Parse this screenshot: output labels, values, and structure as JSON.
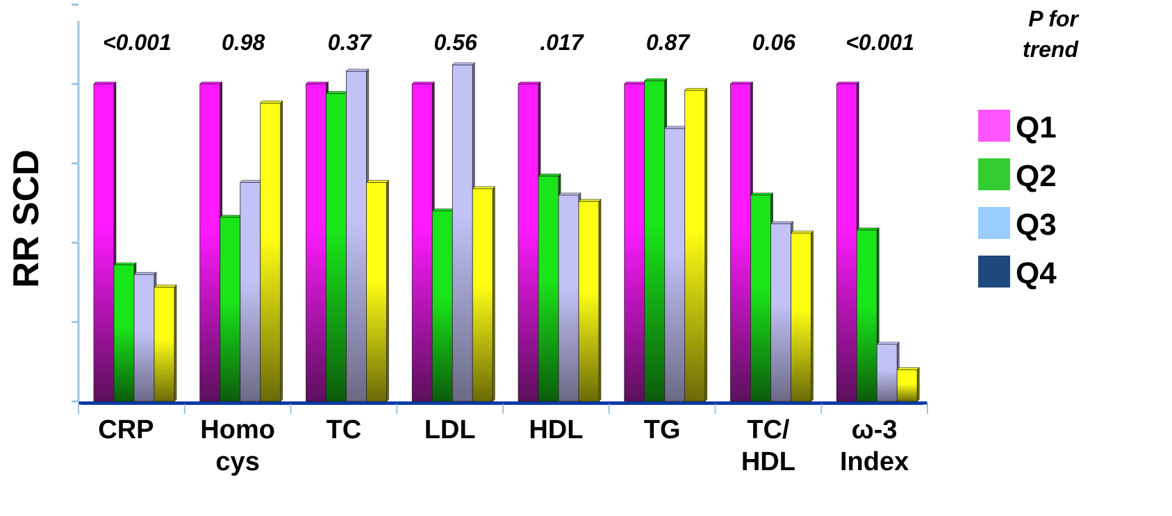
{
  "chart_data": {
    "type": "bar",
    "title": "",
    "ylabel": "RR SCD",
    "xlabel": "",
    "ylim": [
      0,
      1.25
    ],
    "ytick_values": [
      0,
      0.25,
      0.5,
      0.75,
      1.0,
      1.25
    ],
    "ytick_labels_shown": false,
    "grid": false,
    "legend_position": "right",
    "categories": [
      [
        "CRP"
      ],
      [
        "Homo",
        "cys"
      ],
      [
        "TC"
      ],
      [
        "LDL"
      ],
      [
        "HDL"
      ],
      [
        "TG"
      ],
      [
        "TC/",
        "HDL"
      ],
      [
        "ω-3",
        "Index"
      ]
    ],
    "series": [
      {
        "name": "Q1",
        "values": [
          1.0,
          1.0,
          1.0,
          1.0,
          1.0,
          1.0,
          1.0,
          1.0
        ]
      },
      {
        "name": "Q2",
        "values": [
          0.43,
          0.58,
          0.97,
          0.6,
          0.71,
          1.01,
          0.65,
          0.54
        ]
      },
      {
        "name": "Q3",
        "values": [
          0.4,
          0.69,
          1.04,
          1.06,
          0.65,
          0.86,
          0.56,
          0.18
        ]
      },
      {
        "name": "Q4",
        "values": [
          0.36,
          0.94,
          0.69,
          0.67,
          0.63,
          0.98,
          0.53,
          0.1
        ]
      }
    ],
    "p_for_trend": [
      "<0.001",
      "0.98",
      "0.37",
      "0.56",
      ".017",
      "0.87",
      "0.06",
      "<0.001"
    ],
    "p_for_trend_label": [
      "P for",
      "trend"
    ],
    "bar_colors": [
      "#ff1aff",
      "#19e619",
      "#c2c2f7",
      "#ffff14"
    ],
    "bar_shade_colors": [
      "#5c0f5c",
      "#0c5c0c",
      "#6a6a85",
      "#6b6b08"
    ],
    "legend_colors": [
      "#ff55ff",
      "#33cc33",
      "#99ccff",
      "#1f497d"
    ],
    "axis_color": "#9cc3e5",
    "floor_color": "#0b3ba6"
  }
}
